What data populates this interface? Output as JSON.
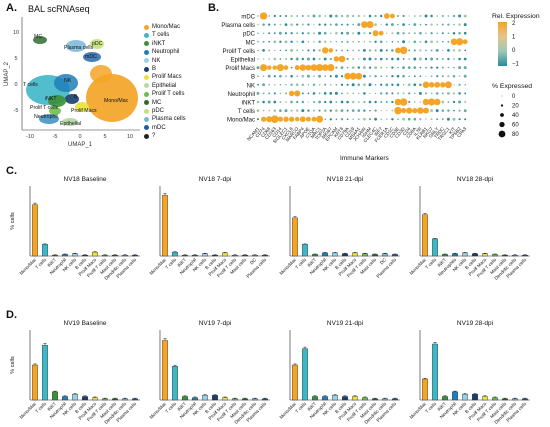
{
  "figure": {
    "panel_a": {
      "letter": "A.",
      "title": "BAL scRNAseq",
      "xlabel": "UMAP_1",
      "ylabel": "UMAP_2",
      "xticks": [
        "-10",
        "-5",
        "0",
        "5",
        "10"
      ],
      "yticks": [
        "10",
        "5",
        "0",
        "-5"
      ],
      "cluster_labels": [
        "MC",
        "Plasma cells",
        "pDC",
        "mDC",
        "T cells",
        "NK",
        "B",
        "iNKT",
        "Prolif T cells",
        "Prolif Macs",
        "Mono/Mac",
        "Neutrophil",
        "Epithelial"
      ],
      "legend": [
        {
          "label": "Mono/Mac",
          "color": "#f4a426"
        },
        {
          "label": "T cells",
          "color": "#3fb6c6"
        },
        {
          "label": "iNKT",
          "color": "#3a8f3a"
        },
        {
          "label": "Neutrophil",
          "color": "#1f7fb8"
        },
        {
          "label": "NK",
          "color": "#9ad0e8"
        },
        {
          "label": "B",
          "color": "#1a3e6e"
        },
        {
          "label": "Prolif Macs",
          "color": "#e8e23a"
        },
        {
          "label": "Epithelial",
          "color": "#b7d7a8"
        },
        {
          "label": "Prolif T cells",
          "color": "#6cbf4a"
        },
        {
          "label": "MC",
          "color": "#2e6b30"
        },
        {
          "label": "pDC",
          "color": "#c4e07a"
        },
        {
          "label": "Plasma cells",
          "color": "#79b7d9"
        },
        {
          "label": "mDC",
          "color": "#1b5ea6"
        },
        {
          "label": "?",
          "color": "#222222"
        }
      ]
    },
    "panel_b": {
      "letter": "B.",
      "xlabel": "Immune Markers",
      "rows": [
        "mDC",
        "Plasma cells",
        "pDC",
        "MC",
        "Prolif T cells",
        "Epithelial",
        "Prolif Macs",
        "B",
        "NK",
        "Neutrophil",
        "iNKT",
        "T cells",
        "Mono/Mac"
      ],
      "markers": [
        "NCAM1",
        "CD74",
        "CD68",
        "CD163",
        "CD14",
        "SIGLEC1",
        "CXCL8",
        "MARCO",
        "FABP4",
        "APOE",
        "C1QA",
        "MRC1",
        "TOP2A",
        "MKI67",
        "EPCAM",
        "KRT8",
        "CD79A",
        "CD19",
        "MS4A1",
        "JCHAIN",
        "IGHM",
        "CLEC4C",
        "IRF7",
        "FCER1A",
        "CD1C",
        "CD3E",
        "CD3D",
        "CD4",
        "CD8A",
        "IL7R",
        "KLRB1",
        "NKG7",
        "GNLY",
        "TRDC",
        "TRGC1",
        "KIT",
        "TPSB2",
        "CPA3"
      ],
      "color_legend_title": "Rel. Expression",
      "color_ticks": [
        "2",
        "1",
        "0",
        "−1"
      ],
      "size_legend_title": "% Expressed",
      "size_ticks": [
        "0",
        "20",
        "40",
        "60",
        "80"
      ]
    }
  },
  "chart_data": [
    {
      "type": "bar",
      "panel": "C",
      "title": "NV18 Baseline",
      "ylabel": "% cells",
      "ylim": [
        0,
        90
      ],
      "categories": [
        "Mono/Mac",
        "T cells",
        "iNKT",
        "Neutrophil",
        "NK cells",
        "B cells",
        "Prolif Macs",
        "Prolif T cells",
        "Mast cells",
        "Dendritic cells",
        "Plasma cells"
      ],
      "values": [
        66,
        15,
        1,
        2,
        3,
        1,
        5,
        1,
        1,
        1,
        1
      ]
    },
    {
      "type": "bar",
      "panel": "C",
      "title": "NV18 7-dpi",
      "ylabel": "",
      "ylim": [
        0,
        90
      ],
      "categories": [
        "Mono/Mac",
        "T cells",
        "iNKT",
        "Neutrophil",
        "NK cells",
        "B cells",
        "Prolif Macs",
        "Prolif T cells",
        "Mast cells",
        "DC",
        "Plasma cells"
      ],
      "values": [
        78,
        5,
        1,
        1,
        3,
        1,
        4,
        1,
        1,
        1,
        1
      ]
    },
    {
      "type": "bar",
      "panel": "C",
      "title": "NV18 21-dpi",
      "ylabel": "",
      "ylim": [
        0,
        90
      ],
      "categories": [
        "Mono/Mac",
        "T cells",
        "iNKT",
        "Neutrophil",
        "NK cells",
        "B cells",
        "Prolif Macs",
        "Prolif T cells",
        "Mast cells",
        "DC",
        "Plasma cells"
      ],
      "values": [
        49,
        15,
        2,
        4,
        4,
        3,
        4,
        3,
        2,
        3,
        2
      ]
    },
    {
      "type": "bar",
      "panel": "C",
      "title": "NV18 28-dpi",
      "ylabel": "",
      "ylim": [
        0,
        90
      ],
      "categories": [
        "Mono/Mac",
        "T cells",
        "iNKT",
        "Neutrophils",
        "NK cells",
        "B cells",
        "Prolif Macs",
        "Prolif T cells",
        "Mast cells",
        "Dendritic cells",
        "Plasma cells"
      ],
      "values": [
        53,
        22,
        2,
        3,
        4,
        3,
        3,
        2,
        1,
        1,
        1
      ]
    },
    {
      "type": "bar",
      "panel": "D",
      "title": "NV19 Baseline",
      "ylabel": "% cells",
      "ylim": [
        0,
        60
      ],
      "categories": [
        "Mono/Mac",
        "T cells",
        "iNKT",
        "Neutrophil",
        "NK cells",
        "B cells",
        "Prolif Macs",
        "Prolif T cells",
        "Mast cells",
        "Dendritic cells",
        "Plasma cells"
      ],
      "values": [
        30,
        47,
        7,
        3,
        5,
        3,
        2,
        1,
        1,
        1,
        1
      ]
    },
    {
      "type": "bar",
      "panel": "D",
      "title": "NV19 7-dpi",
      "ylabel": "",
      "ylim": [
        0,
        60
      ],
      "categories": [
        "Mono/Mac",
        "T cells",
        "iNKT",
        "Neutrophil",
        "NK cells",
        "B cells",
        "Prolif Macs",
        "Prolif T cells",
        "Mast cells",
        "Dendritic cells",
        "Plasma cells"
      ],
      "values": [
        51,
        29,
        3,
        2,
        4,
        4,
        2,
        1,
        1,
        1,
        1
      ]
    },
    {
      "type": "bar",
      "panel": "D",
      "title": "NV19 21-dpi",
      "ylabel": "",
      "ylim": [
        0,
        60
      ],
      "categories": [
        "Mono/Mac",
        "T cells",
        "iNKT",
        "Neutrophil",
        "NK cells",
        "B cells",
        "Prolif Macs",
        "Prolif T cells",
        "Mast cells",
        "Dendritic cells",
        "Plasma cells"
      ],
      "values": [
        30,
        44,
        3,
        3,
        4,
        3,
        3,
        2,
        1,
        1,
        1
      ]
    },
    {
      "type": "bar",
      "panel": "D",
      "title": "NV19 28-dpi",
      "ylabel": "",
      "ylim": [
        0,
        60
      ],
      "categories": [
        "Mono/Mac",
        "T cells",
        "iNKT",
        "Neutrophil",
        "NK cells",
        "B cells",
        "Prolif Macs",
        "Prolif T cells",
        "Mast cells",
        "Dendritic cells",
        "Plasma cells"
      ],
      "values": [
        18,
        48,
        3,
        7,
        5,
        5,
        3,
        2,
        1,
        1,
        1
      ]
    }
  ],
  "bar_colors": [
    "#f4a426",
    "#3fb6c6",
    "#3a8f3a",
    "#1f7fb8",
    "#9ad0e8",
    "#1a3e6e",
    "#e8e23a",
    "#6cbf4a",
    "#2e6b30",
    "#79b7d9",
    "#1b5ea6"
  ],
  "panel_labels": {
    "c": "C.",
    "d": "D."
  }
}
